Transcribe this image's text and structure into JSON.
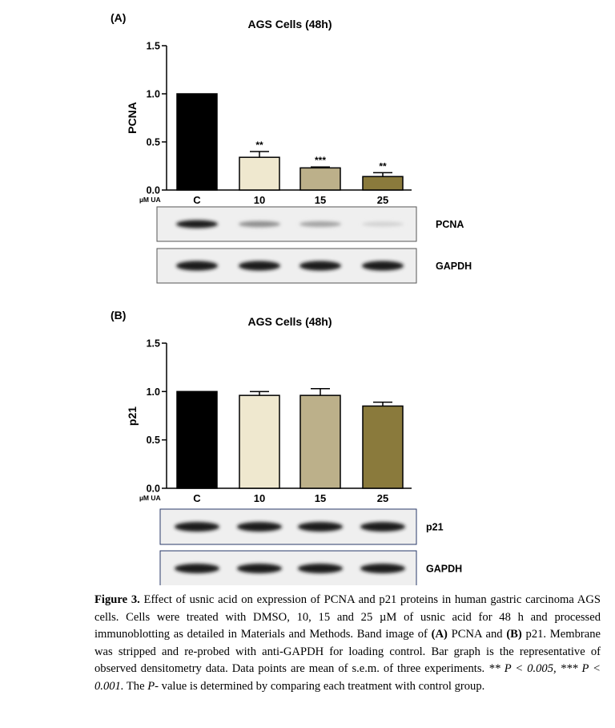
{
  "chart_data": [
    {
      "type": "bar",
      "panel_label": "(A)",
      "title": "AGS Cells (48h)",
      "ylabel": "PCNA",
      "xlabel_unit": "µM  UA",
      "categories": [
        "C",
        "10",
        "15",
        "25"
      ],
      "values": [
        1.0,
        0.34,
        0.23,
        0.14
      ],
      "errors": [
        0,
        0.06,
        0.01,
        0.04
      ],
      "significance": [
        "",
        "**",
        "***",
        "**"
      ],
      "ylim": [
        0,
        1.5
      ],
      "yticks": [
        "0.0",
        "0.5",
        "1.0",
        "1.5"
      ],
      "bar_colors": [
        "#000000",
        "#efe8cf",
        "#bcb08a",
        "#8a7a3c"
      ],
      "blot_labels": [
        "PCNA",
        "GAPDH"
      ],
      "blot_intensity": [
        [
          1.0,
          0.45,
          0.35,
          0.12
        ],
        [
          1.0,
          1.0,
          1.0,
          1.0
        ]
      ]
    },
    {
      "type": "bar",
      "panel_label": "(B)",
      "title": "AGS Cells (48h)",
      "ylabel": "p21",
      "xlabel_unit": "µM  UA",
      "categories": [
        "C",
        "10",
        "15",
        "25"
      ],
      "values": [
        1.0,
        0.96,
        0.96,
        0.85
      ],
      "errors": [
        0,
        0.04,
        0.07,
        0.04
      ],
      "significance": [
        "",
        "",
        "",
        ""
      ],
      "ylim": [
        0,
        1.5
      ],
      "yticks": [
        "0.0",
        "0.5",
        "1.0",
        "1.5"
      ],
      "bar_colors": [
        "#000000",
        "#efe8cf",
        "#bcb08a",
        "#8a7a3c"
      ],
      "blot_labels": [
        "p21",
        "GAPDH"
      ],
      "blot_intensity": [
        [
          1.0,
          1.0,
          1.0,
          1.0
        ],
        [
          1.0,
          1.0,
          1.0,
          1.0
        ]
      ]
    }
  ],
  "caption": {
    "figure_label": "Figure 3.",
    "text1": " Effect of usnic acid on expression of PCNA and p21 proteins in human gastric carcinoma AGS cells. Cells were treated with DMSO, 10, 15 and 25 µM of usnic acid for 48 h and processed immunoblotting as detailed in Materials and Methods. Band image of ",
    "label_a": "(A)",
    "text2": " PCNA and ",
    "label_b": "(B)",
    "text3": " p21. Membrane was stripped and re-probed with anti-GAPDH for loading control. Bar graph is the representative of observed densitometry data. Data points are mean of s.e.m. of three experiments. ",
    "p1": "** P < 0.005, *** P < 0.001.",
    "text4": " The ",
    "p_letter": "P",
    "text5": "- value is determined by comparing each treatment with control group."
  }
}
